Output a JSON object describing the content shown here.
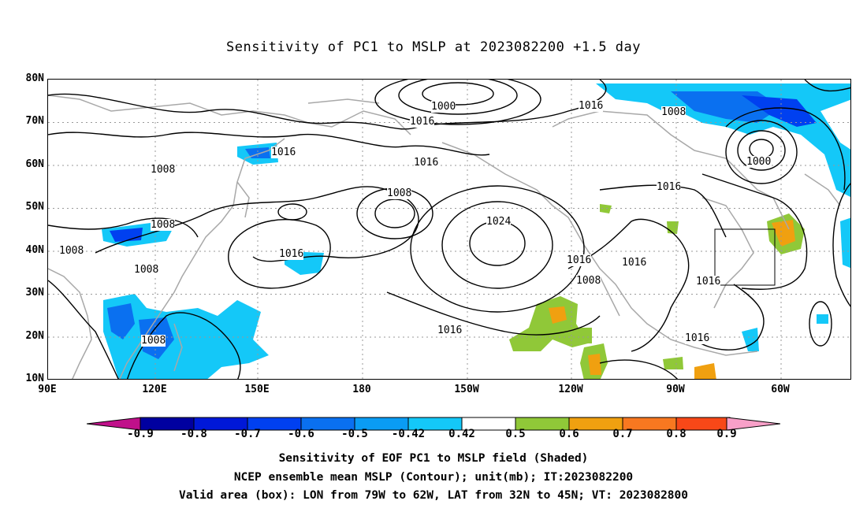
{
  "title": "Sensitivity of PC1 to MSLP at 2023082200 +1.5 day",
  "axes": {
    "lat_labels": [
      "80N",
      "70N",
      "60N",
      "50N",
      "40N",
      "30N",
      "20N",
      "10N"
    ],
    "lon_labels": [
      "90E",
      "120E",
      "150E",
      "180",
      "150W",
      "120W",
      "90W",
      "60W"
    ]
  },
  "contour_labels": [
    "1000",
    "1016",
    "1016",
    "1008",
    "1016",
    "1016",
    "1008",
    "1000",
    "1016",
    "1008",
    "1008",
    "1008",
    "1016",
    "1024",
    "1016",
    "1016",
    "1008",
    "1016",
    "1008",
    "1016",
    "1008",
    "1016"
  ],
  "colorbar": {
    "colors": [
      "#c0108a",
      "#0000a0",
      "#0018d8",
      "#0040f0",
      "#0a70f0",
      "#0a9cf4",
      "#14c8f8",
      "#ffffff",
      "#90c838",
      "#f0a010",
      "#f87820",
      "#f84818",
      "#f01010",
      "#f8a0c8"
    ],
    "labels": [
      "-0.9",
      "-0.8",
      "-0.7",
      "-0.6",
      "-0.5",
      "-0.42",
      "0.42",
      "0.5",
      "0.6",
      "0.7",
      "0.8",
      "0.9"
    ]
  },
  "captions": [
    "Sensitivity of EOF PC1 to MSLP field (Shaded)",
    "NCEP ensemble mean MSLP (Contour); unit(mb); IT:2023082200",
    "Valid area (box): LON from 79W to 62W, LAT from 32N to 45N; VT: 2023082800"
  ]
}
